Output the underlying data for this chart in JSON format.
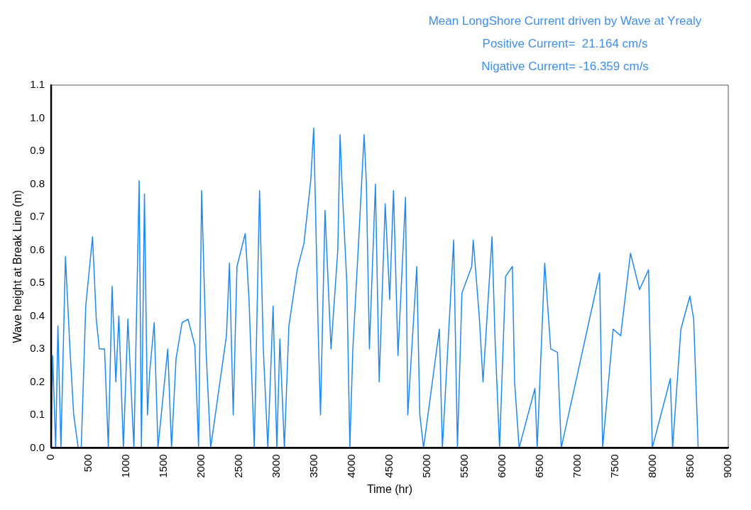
{
  "chart_data": {
    "type": "line",
    "title": "Mean LongShore Current driven by Wave at Yrealy",
    "annotations": [
      "Positive Current=  21.164 cm/s",
      "Nigative Current= -16.359 cm/s"
    ],
    "xlabel": "Time (hr)",
    "ylabel": "Wave height at Break Line (m)",
    "xlim": [
      0,
      9000
    ],
    "xticks": [
      0,
      500,
      1000,
      1500,
      2000,
      2500,
      3000,
      3500,
      4000,
      4500,
      5000,
      5500,
      6000,
      6500,
      7000,
      7500,
      8000,
      8500,
      9000
    ],
    "ylim": [
      0,
      1.1
    ],
    "yticks": [
      {
        "value": 0,
        "label": "0.0"
      },
      0.1,
      0.2,
      0.3,
      0.4,
      0.5,
      0.6,
      0.7,
      0.8,
      0.9,
      {
        "value": 1,
        "label": "1.0"
      },
      1.1
    ],
    "grid": false,
    "legend": false,
    "marker": "none",
    "line_style": "solid",
    "series": [
      {
        "color": "#1e88f5",
        "x": [
          0,
          20,
          60,
          90,
          130,
          190,
          250,
          300,
          360,
          400,
          460,
          550,
          600,
          640,
          710,
          760,
          810,
          860,
          900,
          960,
          1020,
          1100,
          1170,
          1200,
          1240,
          1280,
          1310,
          1370,
          1420,
          1550,
          1600,
          1660,
          1740,
          1820,
          1910,
          1960,
          2000,
          2060,
          2120,
          2330,
          2370,
          2420,
          2470,
          2580,
          2630,
          2700,
          2770,
          2820,
          2880,
          2950,
          3000,
          3040,
          3100,
          3160,
          3270,
          3360,
          3450,
          3490,
          3550,
          3580,
          3640,
          3720,
          3810,
          3840,
          3870,
          3930,
          3970,
          4010,
          4090,
          4160,
          4190,
          4230,
          4310,
          4360,
          4440,
          4500,
          4550,
          4610,
          4710,
          4740,
          4860,
          4900,
          4950,
          5160,
          5200,
          5350,
          5400,
          5460,
          5590,
          5610,
          5690,
          5740,
          5860,
          5900,
          5960,
          6040,
          6130,
          6160,
          6220,
          6430,
          6460,
          6560,
          6640,
          6730,
          6780,
          7290,
          7330,
          7470,
          7570,
          7700,
          7820,
          7940,
          7990,
          8230,
          8260,
          8370,
          8490,
          8540,
          8600
        ],
        "values": [
          0,
          0.28,
          0,
          0.37,
          0,
          0.58,
          0.3,
          0.1,
          0,
          0,
          0.43,
          0.64,
          0.39,
          0.3,
          0.3,
          0,
          0.49,
          0.2,
          0.4,
          0,
          0.39,
          0,
          0.81,
          0,
          0.77,
          0.1,
          0.23,
          0.38,
          0,
          0.3,
          0,
          0.27,
          0.38,
          0.39,
          0.31,
          0,
          0.78,
          0.29,
          0,
          0.34,
          0.56,
          0.1,
          0.55,
          0.65,
          0.45,
          0,
          0.78,
          0.3,
          0,
          0.43,
          0,
          0.33,
          0,
          0.37,
          0.54,
          0.62,
          0.81,
          0.97,
          0.35,
          0.1,
          0.72,
          0.3,
          0.6,
          0.95,
          0.78,
          0.5,
          0,
          0.3,
          0.64,
          0.95,
          0.8,
          0.3,
          0.8,
          0.2,
          0.74,
          0.45,
          0.78,
          0.28,
          0.76,
          0.1,
          0.55,
          0.1,
          0,
          0.36,
          0,
          0.63,
          0,
          0.47,
          0.55,
          0.63,
          0.4,
          0.2,
          0.64,
          0.33,
          0,
          0.52,
          0.55,
          0.2,
          0,
          0.18,
          0,
          0.56,
          0.3,
          0.29,
          0,
          0.53,
          0,
          0.36,
          0.34,
          0.59,
          0.48,
          0.54,
          0,
          0.21,
          0,
          0.36,
          0.46,
          0.39,
          0
        ]
      }
    ]
  }
}
